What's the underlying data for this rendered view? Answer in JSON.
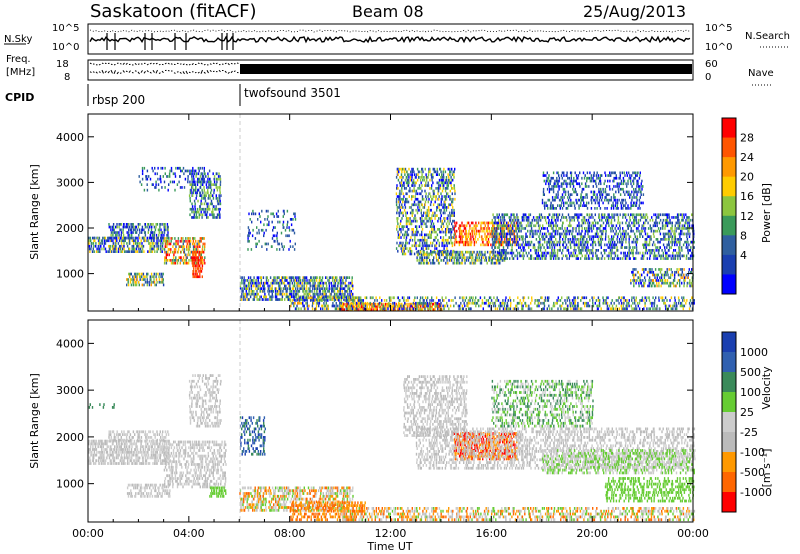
{
  "header": {
    "station": "Saskatoon (fitACF)",
    "beam": "Beam 08",
    "date": "25/Aug/2013"
  },
  "noise_panel": {
    "left_label": "N.Sky",
    "right_label": "N.Search",
    "left_ticks": [
      "10^5",
      "10^0"
    ],
    "right_ticks": [
      "10^5",
      "10^0"
    ]
  },
  "freq_panel": {
    "left_label_1": "Freq.",
    "left_label_2": "[MHz]",
    "left_ticks": [
      "18",
      "8"
    ],
    "right_label": "Nave",
    "right_ticks": [
      "60",
      "0"
    ]
  },
  "cpid_panel": {
    "label": "CPID",
    "modes": [
      "rbsp 200",
      "twofsound 3501"
    ]
  },
  "chart_data": [
    {
      "type": "heatmap",
      "name": "power",
      "ylabel": "Slant Range [km]",
      "ylim": [
        180,
        4500
      ],
      "y_ticks": [
        "1000",
        "2000",
        "3000",
        "4000"
      ],
      "x_ticks": [
        "00:00",
        "04:00",
        "08:00",
        "12:00",
        "16:00",
        "20:00",
        "00:00"
      ],
      "colorbar": {
        "title": "Power [dB]",
        "labels": [
          "28",
          "24",
          "20",
          "16",
          "12",
          "8",
          "4"
        ],
        "colors": [
          "#ff0000",
          "#ff5500",
          "#ff9900",
          "#ffcc00",
          "#8cc63f",
          "#3a9a5a",
          "#2f5f9f",
          "#1a3fb0",
          "#0000ff"
        ]
      }
    },
    {
      "type": "heatmap",
      "name": "velocity",
      "ylabel": "Slant Range [km]",
      "ylim": [
        180,
        4500
      ],
      "y_ticks": [
        "1000",
        "2000",
        "3000",
        "4000"
      ],
      "x_ticks": [
        "00:00",
        "04:00",
        "08:00",
        "12:00",
        "16:00",
        "20:00",
        "00:00"
      ],
      "xlabel": "Time UT",
      "colorbar": {
        "title": "Velocity",
        "unit": "[m s⁻¹]",
        "labels": [
          "1000",
          "500",
          "100",
          "25",
          "-25",
          "-100",
          "-500",
          "-1000"
        ],
        "colors": [
          "#1a3fb0",
          "#3060b0",
          "#3a8a5a",
          "#66cc33",
          "#cccccc",
          "#bbbbbb",
          "#ff9900",
          "#ff6600",
          "#ff0000"
        ]
      }
    }
  ],
  "colors": {
    "ground_scatter": "#bbbbbb"
  }
}
